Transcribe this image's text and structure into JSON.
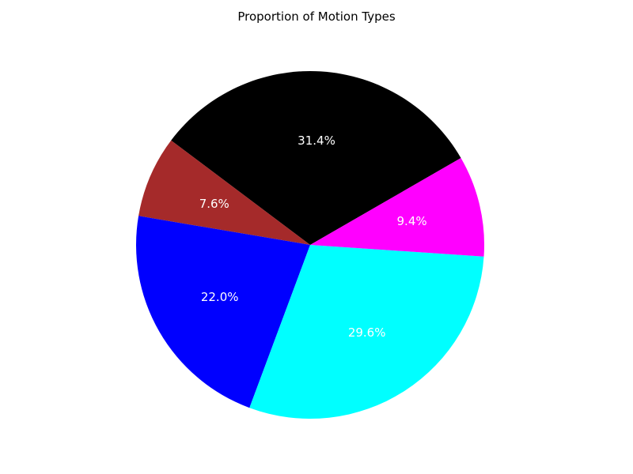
{
  "chart_data": {
    "type": "pie",
    "title": "Proportion of Motion Types",
    "start_angle_deg": 30,
    "direction": "counterclockwise",
    "slices": [
      {
        "value": 31.4,
        "label": "31.4%",
        "color": "#000000",
        "text_color": "#ffffff"
      },
      {
        "value": 7.6,
        "label": "7.6%",
        "color": "#a52a2a",
        "text_color": "#ffffff"
      },
      {
        "value": 22.0,
        "label": "22.0%",
        "color": "#0000ff",
        "text_color": "#ffffff"
      },
      {
        "value": 29.6,
        "label": "29.6%",
        "color": "#00ffff",
        "text_color": "#ffffff"
      },
      {
        "value": 9.4,
        "label": "9.4%",
        "color": "#ff00ff",
        "text_color": "#ffffff"
      }
    ]
  }
}
